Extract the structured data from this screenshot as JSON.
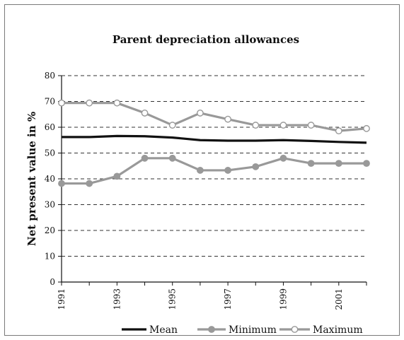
{
  "chart_data": {
    "type": "line",
    "title": "Parent depreciation allowances",
    "xlabel": "",
    "ylabel": "Net present value in %",
    "ylim": [
      0,
      80
    ],
    "yticks": [
      0,
      10,
      20,
      30,
      40,
      50,
      60,
      70,
      80
    ],
    "x": [
      1991,
      1992,
      1993,
      1994,
      1995,
      1996,
      1997,
      1998,
      1999,
      2000,
      2001,
      2002
    ],
    "xtick_labels": [
      "1991",
      "1993",
      "1995",
      "1997",
      "1999",
      "2001"
    ],
    "grid": "horizontal dashed",
    "legend_position": "bottom-right",
    "series": [
      {
        "name": "Mean",
        "color": "#111111",
        "marker": "none",
        "values": [
          56.2,
          56.2,
          56.6,
          56.5,
          56.0,
          55.0,
          54.8,
          54.8,
          55.0,
          54.7,
          54.3,
          54.0
        ]
      },
      {
        "name": "Minimum",
        "color": "#999999",
        "marker": "filled-circle",
        "values": [
          38.2,
          38.2,
          41.0,
          48.0,
          48.0,
          43.3,
          43.3,
          44.7,
          48.0,
          46.0,
          46.0,
          46.0
        ]
      },
      {
        "name": "Maximum",
        "color": "#999999",
        "marker": "open-circle",
        "values": [
          69.4,
          69.4,
          69.4,
          65.5,
          60.8,
          65.5,
          63.1,
          60.8,
          60.8,
          60.8,
          58.6,
          59.5
        ]
      }
    ]
  }
}
